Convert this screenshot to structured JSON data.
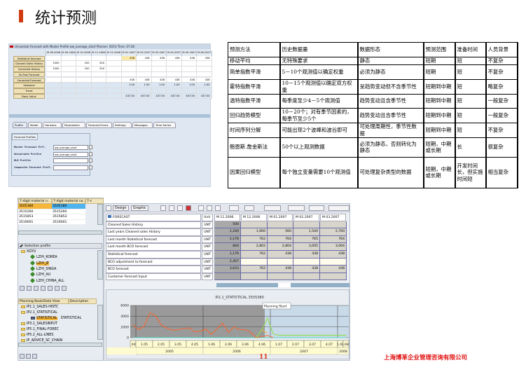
{
  "title": "统计预测",
  "accent_color": "#d03a10",
  "univariate_forecast": {
    "header": "Univariate Forecast with Master Profile ww_average_short Planner: XGYU Time: 07:28",
    "columns": [
      "M 08.2006",
      "M 09.2006",
      "M 10.2006",
      "M 11.2006",
      "M 12.2006",
      "M 01.2007",
      "M 02.2007",
      "M 03.2007",
      "M 04.2007",
      "M 05.2007",
      "M 06.2007"
    ],
    "rows": [
      {
        "label": "Statistical forecast",
        "values": [
          "",
          "",
          "",
          "",
          "",
          "438",
          "438",
          "438",
          "438",
          "438",
          "438"
        ]
      },
      {
        "label": "Cleaned Sales History",
        "values": [
          "1000",
          "",
          "250",
          "500",
          "",
          "",
          "",
          "",
          "",
          "",
          ""
        ]
      },
      {
        "label": "Corrected History",
        "values": [
          "1000",
          "",
          "250",
          "500",
          "",
          "",
          "",
          "",
          "",
          "",
          ""
        ]
      },
      {
        "label": "Ex-Post Forecast",
        "values": [
          "",
          "",
          "",
          "",
          "",
          "",
          "",
          "",
          "",
          "",
          ""
        ]
      },
      {
        "label": "Corrected Forecast",
        "values": [
          "",
          "",
          "",
          "",
          "",
          "438",
          "438",
          "438",
          "438",
          "438",
          "438"
        ]
      },
      {
        "label": "Seasonal",
        "values": [
          "",
          "",
          "",
          "",
          "",
          "1.00",
          "1.00",
          "1.00",
          "1.00",
          "1.00",
          "1.00"
        ]
      },
      {
        "label": "Trend",
        "values": [
          "",
          "",
          "",
          "",
          "",
          "",
          "",
          "",
          "",
          "",
          ""
        ]
      },
      {
        "label": "Basic Value",
        "values": [
          "",
          "",
          "",
          "",
          "",
          "437.50",
          "437.50",
          "437.50",
          "437.50",
          "437.50",
          "437.50"
        ]
      }
    ],
    "tabs": [
      "Profile",
      "Model",
      "Horizons",
      "Parameters",
      "Forecast Errors",
      "Settings",
      "Messages",
      "Time Series"
    ],
    "active_tab": "Profile",
    "profile_box": {
      "title": "Forecast Profiles",
      "fields": [
        {
          "label": "Master Forecast Prfl.",
          "value": "ww_average_short"
        },
        {
          "label": "Univariate Profile",
          "value": "ww_average_short"
        },
        {
          "label": "MLR Profile",
          "value": ""
        },
        {
          "label": "Composite Forecast Profl.",
          "value": ""
        }
      ]
    }
  },
  "method_table": {
    "headers": [
      "预测方法",
      "历史数据量",
      "数据形态",
      "预测范围",
      "准备时间",
      "人员背景"
    ],
    "rows": [
      [
        "移动平均",
        "无特殊要求",
        "静态",
        "短期",
        "短",
        "不复杂"
      ],
      [
        "简单指数平滑",
        "5－10个观测值以确定权重",
        "必须为静态",
        "短期",
        "短",
        "不复杂"
      ],
      [
        "霍特指数平滑",
        "10－15个观测值以确定双方权重",
        "呈趋势变动但不含季节性",
        "短期到中期",
        "短",
        "略复杂"
      ],
      [
        "温特指数平滑",
        "每季度至少4－5个观测值",
        "趋势变动且含季节性",
        "短期到中期",
        "短",
        "一般复杂"
      ],
      [
        "回归趋势模型",
        "10－20个；对有季节因素的，每季节至少5个",
        "趋势变动且含季节性",
        "短期到中期",
        "短",
        "一般复杂"
      ],
      [
        "时间序列分解",
        "可能出现2个波峰和波谷即可",
        "可处理周期性，季节性数据",
        "短期到中期",
        "短",
        "不复杂"
      ],
      [
        "鲍恩斯.詹金斯法",
        "50个以上观测数据",
        "必须为静态，否则转化为静态",
        "短期，中期或长期",
        "长",
        "很复杂"
      ],
      [
        "因果回归模型",
        "每个独立变量需要10个观测值",
        "可处理复杂类型的数据",
        "短期，中期或长期",
        "开发时间长，但实施时间短",
        "相当复杂"
      ]
    ]
  },
  "selector": {
    "columns": [
      "7-digit material n..",
      "7-digit material no.",
      "7-c"
    ],
    "rows": [
      [
        "3505380",
        "3505380"
      ],
      [
        "3515260",
        "3515260"
      ],
      [
        "3515853",
        "3515853"
      ],
      [
        "3519001",
        "3519001"
      ]
    ],
    "selection_profile_label": "Selection profile",
    "profile_tree": [
      "XGYU",
      "LZHI_KOREA",
      "LZHI_JP",
      "LZHI_SINGA",
      "LZHI_AU",
      "LZHI_CHINA_ALL"
    ],
    "selected_profile": "LZHI_JP",
    "planning_book_columns": [
      "Planning Book/Data View",
      "Description"
    ],
    "planning_books": [
      "IP1.1_SALES-HISTC",
      "IP2.1_STATISTICAL",
      "STATISTICAL",
      "IP3.1_SALESINPUT",
      "IP5.1_FINAL-FOREC",
      "IP5.2_ALL-LINES",
      "IP_ADVICE_SC_CHAIN"
    ],
    "selected_view": "STATISTICAL",
    "selected_view_description": "STATISTICAL"
  },
  "planning_grid": {
    "toolbar": {
      "design": "Design",
      "graphic": "Graphic"
    },
    "title": "FORECAST",
    "unit_header": "Unit",
    "columns": [
      "M 11.2006",
      "M 12.2006",
      "M 01.2007",
      "M 02.2007",
      "M 03.2007"
    ],
    "rows": [
      {
        "label": "Cleaned Sales History",
        "unit": "UNT",
        "values": [
          "500",
          "",
          "",
          "",
          ""
        ]
      },
      {
        "label": "Last years Cleaned sales History",
        "unit": "UNT",
        "values": [
          "1,240",
          "1,660",
          "560",
          "1,540",
          "2,700"
        ]
      },
      {
        "label": "Last month Statistical forecast",
        "unit": "UNT",
        "values": [
          "1,176",
          "762",
          "764",
          "765",
          "764"
        ]
      },
      {
        "label": "Last month BCO forecast",
        "unit": "UNT",
        "values": [
          "844",
          "2,802",
          "2,804",
          "3,005",
          "3,004"
        ]
      },
      {
        "label": "Statistical forecast",
        "unit": "UNT",
        "values": [
          "1,176",
          "762",
          "438",
          "438",
          "438"
        ]
      },
      {
        "label": "BCO adjustment to forecast",
        "unit": "UNT",
        "values": [
          "2,457",
          "",
          "",
          "",
          ""
        ]
      },
      {
        "label": "BCO forecast",
        "unit": "UNT",
        "values": [
          "3,633",
          "762",
          "438",
          "438",
          "438"
        ]
      },
      {
        "label": "Customer forecast Input",
        "unit": "UNT",
        "values": [
          "",
          "",
          "",
          "",
          ""
        ]
      }
    ]
  },
  "chart_data": {
    "type": "line",
    "title": "IP2.1_STATISTICAL  3505380",
    "annotation": "Planning Start",
    "planning_start": "12.2006",
    "ylim": [
      0,
      6000
    ],
    "yticks": [
      0,
      2000,
      4000,
      6000
    ],
    "x": [
      "12.2004",
      "01.2005",
      "02.2005",
      "03.2005",
      "04.2005",
      "05.2005",
      "06.2005",
      "07.2005",
      "08.2005",
      "09.2005",
      "10.2005",
      "11.2005",
      "12.2005",
      "01.2006",
      "02.2006",
      "03.2006",
      "04.2006",
      "05.2006",
      "06.2006",
      "07.2006",
      "08.2006",
      "09.2006",
      "10.2006",
      "11.2006",
      "12.2006",
      "01.2007",
      "02.2007",
      "03.2007",
      "04.2007",
      "05.2007",
      "06.2007",
      "07.2007",
      "08.2007",
      "09.2007",
      "10.2007",
      "11.2007",
      "12.2007",
      "01.2008",
      "02.2008"
    ],
    "quarter_labels": [
      ".04",
      "1.05",
      "2.05",
      "3.05",
      "4.05",
      "1.06",
      "2.06",
      "3.06",
      "4.06",
      "1.07",
      "2.07",
      "3.07",
      "4.07",
      "1.08",
      ".08"
    ],
    "year_labels": [
      "2005",
      "2006",
      "2007",
      "2008"
    ],
    "series": [
      {
        "color": "#f26a35",
        "values": [
          2400,
          1500,
          2200,
          4600,
          4100,
          2400,
          1800,
          1400,
          1500,
          1700,
          1800,
          1100,
          1200,
          1600,
          600,
          1700,
          2700,
          1000,
          2000,
          1500,
          1500,
          1000,
          0,
          200,
          400,
          0,
          null,
          null,
          null,
          null,
          null,
          null,
          null,
          null,
          null,
          null,
          null,
          null,
          null
        ]
      },
      {
        "color": "#8fe04a",
        "values": [
          null,
          null,
          null,
          null,
          null,
          null,
          null,
          null,
          null,
          null,
          null,
          null,
          null,
          null,
          null,
          null,
          null,
          null,
          null,
          null,
          null,
          null,
          0,
          1500,
          3600,
          700,
          438,
          438,
          438,
          438,
          438,
          438,
          438,
          438,
          438,
          438,
          438,
          438,
          438
        ]
      },
      {
        "color": "#e8b040",
        "values": [
          null,
          null,
          null,
          null,
          null,
          null,
          null,
          null,
          null,
          null,
          null,
          null,
          null,
          null,
          null,
          null,
          null,
          null,
          null,
          null,
          null,
          null,
          null,
          1500,
          800,
          null,
          null,
          null,
          null,
          null,
          null,
          null,
          null,
          null,
          null,
          null,
          null,
          null,
          null
        ]
      },
      {
        "color": "#55d6c0",
        "values": [
          0,
          0,
          0,
          0,
          0,
          0,
          0,
          0,
          0,
          0,
          0,
          0,
          0,
          0,
          0,
          0,
          0,
          0,
          0,
          0,
          0,
          0,
          0,
          0,
          0,
          0,
          0,
          0,
          0,
          0,
          0,
          0,
          0,
          0,
          0,
          0,
          0,
          0,
          0
        ]
      }
    ]
  },
  "page_number": "11",
  "company": "上海博革企业管理咨询有限公司"
}
